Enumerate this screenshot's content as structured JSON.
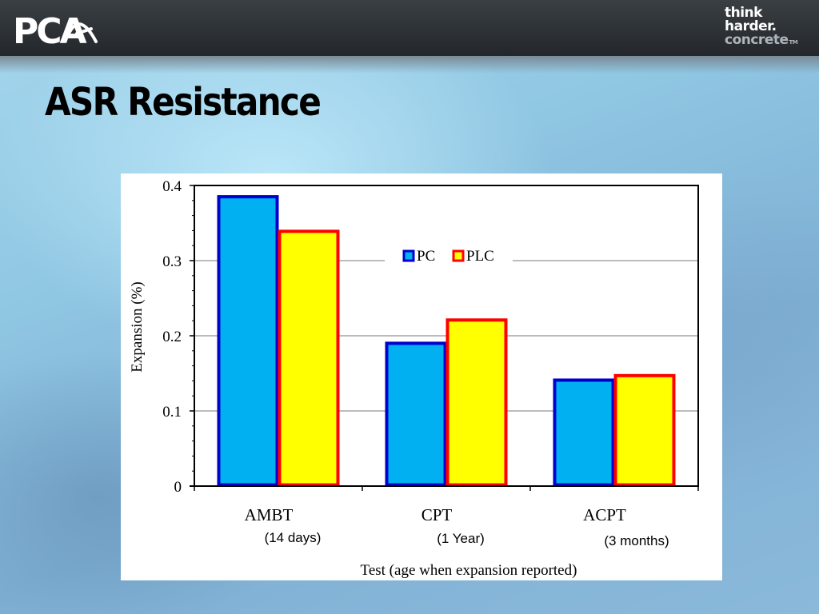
{
  "header": {
    "logo_text": "PCA",
    "brand_lines": [
      "think",
      "harder.",
      "concrete"
    ],
    "brand_tm": "TM"
  },
  "slide": {
    "title": "ASR Resistance"
  },
  "colors": {
    "pc_fill": "#00b0f0",
    "pc_border": "#0000cc",
    "plc_fill": "#ffff00",
    "plc_border": "#ff0000",
    "gridline": "#a6a6a6"
  },
  "chart_data": {
    "type": "bar",
    "title": "",
    "xlabel": "Test (age  when expansion reported)",
    "ylabel": "Expansion (%)",
    "ylim": [
      0,
      0.4
    ],
    "yticks": [
      "0",
      "0.1",
      "0.2",
      "0.3",
      "0.4"
    ],
    "grid": true,
    "legend_position": "top-center",
    "categories": [
      "AMBT",
      "CPT",
      "ACPT"
    ],
    "category_sublabels": [
      "(14 days)",
      "(1 Year)",
      "(3 months)"
    ],
    "series": [
      {
        "name": "PC",
        "values": [
          0.385,
          0.19,
          0.141
        ]
      },
      {
        "name": "PLC",
        "values": [
          0.339,
          0.221,
          0.147
        ]
      }
    ]
  }
}
